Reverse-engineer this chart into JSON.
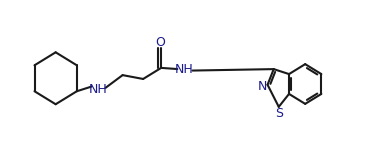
{
  "bg_color": "#ffffff",
  "line_color": "#1a1a1a",
  "heteroatom_color": "#1a1a8a",
  "line_width": 1.5,
  "font_size_atom": 9,
  "fig_width": 3.77,
  "fig_height": 1.68,
  "dpi": 100,
  "xlim": [
    0,
    10.5
  ],
  "ylim": [
    0,
    4.4
  ]
}
